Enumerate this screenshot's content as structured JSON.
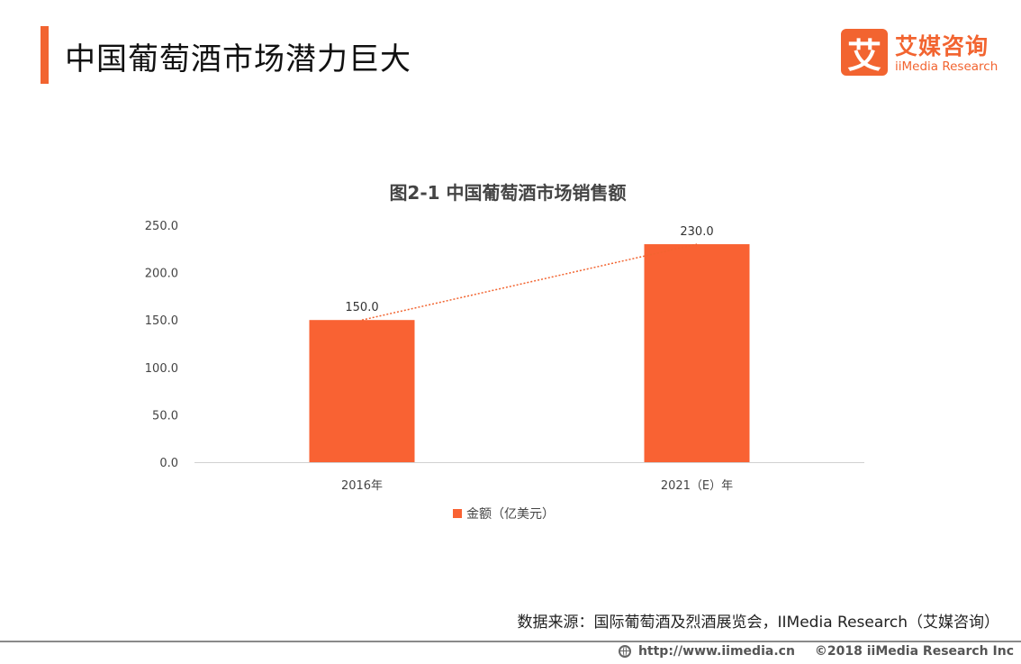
{
  "header": {
    "title": "中国葡萄酒市场潜力巨大",
    "logo_mark": "艾",
    "logo_cn": "艾媒咨询",
    "logo_en": "iiMedia Research"
  },
  "colors": {
    "accent": "#f26430",
    "bar": "#f96233",
    "trend": "#f26430"
  },
  "chart_data": {
    "type": "bar",
    "title": "图2-1 中国葡萄酒市场销售额",
    "categories": [
      "2016年",
      "2021（E）年"
    ],
    "series": [
      {
        "name": "金额（亿美元）",
        "values": [
          150.0,
          230.0
        ]
      }
    ],
    "data_labels": [
      "150.0",
      "230.0"
    ],
    "y_ticks": [
      "0.0",
      "50.0",
      "100.0",
      "150.0",
      "200.0",
      "250.0"
    ],
    "ylim": [
      0,
      250
    ],
    "xlabel": "",
    "ylabel": "",
    "grid": false,
    "trendline": "dotted",
    "legend_position": "bottom"
  },
  "source": "数据来源：国际葡萄酒及烈酒展览会，IIMedia Research（艾媒咨询）",
  "footer": {
    "icon": "globe-icon",
    "url": "http://www.iimedia.cn",
    "copyright": "©2018  iiMedia Research  Inc"
  }
}
